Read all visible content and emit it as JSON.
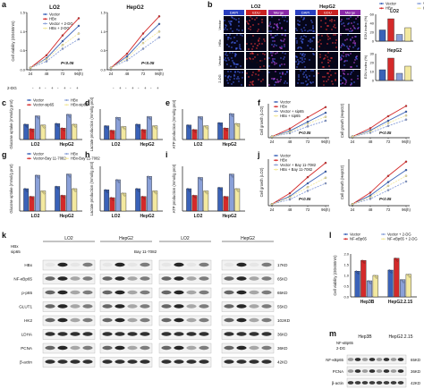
{
  "panel_letters": [
    "a",
    "b",
    "c",
    "d",
    "e",
    "f",
    "g",
    "h",
    "i",
    "j",
    "k",
    "l",
    "m"
  ],
  "legends": {
    "a": [
      "Vector",
      "HBx",
      "Vector + 2-DG",
      "HBx + 2-DG"
    ],
    "b": [
      "Vector",
      "HBx",
      "Vector + 2-DG",
      "HBx + 2-DG"
    ],
    "c": [
      "Vector",
      "Vector-sip65",
      "HBx",
      "HBx-sip65"
    ],
    "f": [
      "Vector",
      "HBx",
      "Vector + sip65",
      "HBx + sip65"
    ],
    "g": [
      "Vector",
      "Vector-Bay 11-7082",
      "HBx",
      "HBx-Bay 11-7082"
    ],
    "j": [
      "Vector",
      "HBx",
      "Vector + Bay 11-7082",
      "HBx + Bay 11-7082"
    ],
    "l": [
      "Vector",
      "NF-κBp65",
      "Vector + 2-DG",
      "NF-κBp65 + 2-DG"
    ]
  },
  "panel_a": {
    "ylabel": "Cell viability (OD450nm)",
    "xlabel": "2-DG",
    "titles": [
      "LO2",
      "HepG2"
    ],
    "pval": "P<0.05",
    "xticks": [
      "24",
      "48",
      "72",
      "96(h)"
    ],
    "yticks": [
      "1.5",
      "1.0",
      "0.5",
      "0.0"
    ]
  },
  "panel_b": {
    "cell_lines": [
      "LO2",
      "HepG2"
    ],
    "stains": [
      "DAPI",
      "EDU",
      "Merge"
    ],
    "row_labels": [
      "Vector",
      "HBx",
      "Vector",
      "2-DG"
    ],
    "bar_titles": [
      "LO2",
      "HepG2"
    ],
    "bar_ylabel": "EDU index (%)",
    "yticks_top": [
      "60",
      "40",
      "20",
      "0"
    ],
    "yticks_bot": [
      "30",
      "20",
      "10",
      "0"
    ]
  },
  "panel_c": {
    "ylabel": "Glucose uptake (mmol/g prot)",
    "groups": [
      "LO2",
      "HepG2"
    ]
  },
  "panel_d": {
    "ylabel": "Lactate production (mmol/g prot)",
    "groups": [
      "LO2",
      "HepG2"
    ]
  },
  "panel_e": {
    "ylabel": "ATP production (mmol/g prot)",
    "groups": [
      "LO2",
      "HepG2"
    ]
  },
  "panel_f": {
    "ylabels": [
      "Cell growth (LO2)",
      "Cell growth (HepG2)"
    ],
    "xticks": [
      "24",
      "48",
      "72",
      "96(h)"
    ],
    "pval": "P<0.05"
  },
  "panel_g": {
    "ylabel": "Glucose uptake (mmol/g prot)",
    "groups": [
      "LO2",
      "HepG2"
    ]
  },
  "panel_h": {
    "ylabel": "Lactate production (mmol/g prot)",
    "groups": [
      "LO2",
      "HepG2"
    ]
  },
  "panel_i": {
    "ylabel": "ATP production (mmol/g prot)",
    "groups": [
      "LO2",
      "HepG2"
    ]
  },
  "panel_j": {
    "ylabels": [
      "Cell growth (LO2)",
      "Cell growth (HepG2)"
    ],
    "xticks": [
      "24",
      "48",
      "72",
      "96(h)"
    ],
    "pval": "P<0.05"
  },
  "panel_k": {
    "cell_lines": [
      "LO2",
      "HepG2",
      "LO2",
      "HepG2"
    ],
    "treatments_left": [
      "HBx",
      "sip65"
    ],
    "treatment_right": "Bay 11-7082",
    "proteins": [
      "HBx",
      "NF-κBp65",
      "p-p65",
      "GLUT1",
      "HK2",
      "LDHA",
      "PCNA",
      "β-actin"
    ],
    "sizes": [
      "17KD",
      "65KD",
      "65KD",
      "55KD",
      "102KD",
      "36KD",
      "36KD",
      "42KD"
    ]
  },
  "panel_l": {
    "ylabel": "Cell viability (OD450nm)",
    "groups": [
      "Hep3B",
      "HepG2.2.15"
    ],
    "yticks": [
      "2.0",
      "1.5",
      "1.0",
      "0.5",
      "0.0"
    ]
  },
  "panel_m": {
    "cell_lines": [
      "Hep3B",
      "HepG2.2.15"
    ],
    "treatments": [
      "NF-κBp65",
      "2-DG"
    ],
    "proteins": [
      "NF-κBp65",
      "PCNA",
      "β-actin"
    ],
    "sizes": [
      "65KD",
      "36KD",
      "42KD"
    ]
  },
  "chart_data": [
    {
      "panel": "a-LO2",
      "type": "line",
      "x": [
        24,
        48,
        72,
        96
      ],
      "ylim": [
        0,
        1.5
      ],
      "series": [
        {
          "name": "Vector",
          "values": [
            0.05,
            0.3,
            0.75,
            1.15
          ]
        },
        {
          "name": "HBx",
          "values": [
            0.05,
            0.38,
            0.9,
            1.35
          ]
        },
        {
          "name": "Vector + 2-DG",
          "values": [
            0.05,
            0.22,
            0.55,
            0.8
          ]
        },
        {
          "name": "HBx + 2-DG",
          "values": [
            0.05,
            0.28,
            0.65,
            0.95
          ]
        }
      ]
    },
    {
      "panel": "a-HepG2",
      "type": "line",
      "x": [
        24,
        48,
        72,
        96
      ],
      "ylim": [
        0,
        1.5
      ],
      "series": [
        {
          "name": "Vector",
          "values": [
            0.05,
            0.35,
            0.8,
            1.2
          ]
        },
        {
          "name": "HBx",
          "values": [
            0.05,
            0.42,
            0.95,
            1.4
          ]
        },
        {
          "name": "Vector + 2-DG",
          "values": [
            0.05,
            0.25,
            0.55,
            0.85
          ]
        },
        {
          "name": "HBx + 2-DG",
          "values": [
            0.05,
            0.3,
            0.7,
            1.0
          ]
        }
      ]
    },
    {
      "panel": "b-LO2",
      "type": "bar",
      "ylim": [
        0,
        60
      ],
      "values": [
        25,
        50,
        15,
        30
      ]
    },
    {
      "panel": "b-HepG2",
      "type": "bar",
      "ylim": [
        0,
        30
      ],
      "values": [
        12,
        25,
        8,
        16
      ]
    },
    {
      "panel": "c",
      "type": "bar",
      "categories": [
        "LO2",
        "HepG2"
      ],
      "series": [
        {
          "name": "Vector",
          "values": [
            2.0,
            2.1
          ]
        },
        {
          "name": "Vector-sip65",
          "values": [
            1.4,
            1.5
          ]
        },
        {
          "name": "HBx",
          "values": [
            3.1,
            3.3
          ]
        },
        {
          "name": "HBx-sip65",
          "values": [
            1.9,
            2.0
          ]
        }
      ]
    },
    {
      "panel": "d",
      "type": "bar",
      "categories": [
        "LO2",
        "HepG2"
      ],
      "series": [
        {
          "name": "Vector",
          "values": [
            1.8,
            2.0
          ]
        },
        {
          "name": "Vector-sip65",
          "values": [
            1.2,
            1.3
          ]
        },
        {
          "name": "HBx",
          "values": [
            2.9,
            3.0
          ]
        },
        {
          "name": "HBx-sip65",
          "values": [
            1.7,
            1.8
          ]
        }
      ]
    },
    {
      "panel": "e",
      "type": "bar",
      "categories": [
        "LO2",
        "HepG2"
      ],
      "series": [
        {
          "name": "Vector",
          "values": [
            1.9,
            2.2
          ]
        },
        {
          "name": "Vector-sip65",
          "values": [
            1.3,
            1.5
          ]
        },
        {
          "name": "HBx",
          "values": [
            3.0,
            3.4
          ]
        },
        {
          "name": "HBx-sip65",
          "values": [
            1.8,
            2.1
          ]
        }
      ]
    },
    {
      "panel": "f-LO2",
      "type": "line",
      "x": [
        24,
        48,
        72,
        96
      ],
      "ylim": [
        0,
        1.5
      ],
      "series": [
        {
          "name": "Vector",
          "values": [
            0.05,
            0.3,
            0.7,
            1.1
          ]
        },
        {
          "name": "HBx",
          "values": [
            0.05,
            0.4,
            0.9,
            1.35
          ]
        },
        {
          "name": "Vector + sip65",
          "values": [
            0.05,
            0.2,
            0.5,
            0.75
          ]
        },
        {
          "name": "HBx + sip65",
          "values": [
            0.05,
            0.26,
            0.62,
            0.92
          ]
        }
      ]
    },
    {
      "panel": "f-HepG2",
      "type": "line",
      "x": [
        24,
        48,
        72,
        96
      ],
      "ylim": [
        0,
        1.5
      ],
      "series": [
        {
          "name": "Vector",
          "values": [
            0.05,
            0.32,
            0.75,
            1.15
          ]
        },
        {
          "name": "HBx",
          "values": [
            0.05,
            0.42,
            0.95,
            1.4
          ]
        },
        {
          "name": "Vector + sip65",
          "values": [
            0.05,
            0.22,
            0.52,
            0.8
          ]
        },
        {
          "name": "HBx + sip65",
          "values": [
            0.05,
            0.28,
            0.65,
            0.98
          ]
        }
      ]
    },
    {
      "panel": "g",
      "type": "bar",
      "categories": [
        "LO2",
        "HepG2"
      ],
      "series": [
        {
          "name": "Vector",
          "values": [
            2.0,
            2.2
          ]
        },
        {
          "name": "Vector-Bay 11-7082",
          "values": [
            1.3,
            1.4
          ]
        },
        {
          "name": "HBx",
          "values": [
            3.2,
            3.3
          ]
        },
        {
          "name": "HBx-Bay 11-7082",
          "values": [
            1.8,
            2.0
          ]
        }
      ]
    },
    {
      "panel": "h",
      "type": "bar",
      "categories": [
        "LO2",
        "HepG2"
      ],
      "series": [
        {
          "name": "Vector",
          "values": [
            1.9,
            2.0
          ]
        },
        {
          "name": "Vector-Bay 11-7082",
          "values": [
            1.2,
            1.3
          ]
        },
        {
          "name": "HBx",
          "values": [
            2.8,
            3.1
          ]
        },
        {
          "name": "HBx-Bay 11-7082",
          "values": [
            1.6,
            1.8
          ]
        }
      ]
    },
    {
      "panel": "i",
      "type": "bar",
      "categories": [
        "LO2",
        "HepG2"
      ],
      "series": [
        {
          "name": "Vector",
          "values": [
            2.0,
            2.1
          ]
        },
        {
          "name": "Vector-Bay 11-7082",
          "values": [
            1.4,
            1.3
          ]
        },
        {
          "name": "HBx",
          "values": [
            3.0,
            3.3
          ]
        },
        {
          "name": "HBx-Bay 11-7082",
          "values": [
            1.8,
            2.0
          ]
        }
      ]
    },
    {
      "panel": "j-LO2",
      "type": "line",
      "x": [
        24,
        48,
        72,
        96
      ],
      "ylim": [
        0,
        1.5
      ],
      "series": [
        {
          "name": "Vector",
          "values": [
            0.05,
            0.3,
            0.72,
            1.1
          ]
        },
        {
          "name": "HBx",
          "values": [
            0.05,
            0.4,
            0.92,
            1.38
          ]
        },
        {
          "name": "Vector + Bay 11-7082",
          "values": [
            0.05,
            0.2,
            0.48,
            0.72
          ]
        },
        {
          "name": "HBx + Bay 11-7082",
          "values": [
            0.05,
            0.27,
            0.6,
            0.9
          ]
        }
      ]
    },
    {
      "panel": "j-HepG2",
      "type": "line",
      "x": [
        24,
        48,
        72,
        96
      ],
      "ylim": [
        0,
        1.5
      ],
      "series": [
        {
          "name": "Vector",
          "values": [
            0.05,
            0.33,
            0.76,
            1.15
          ]
        },
        {
          "name": "HBx",
          "values": [
            0.05,
            0.42,
            0.96,
            1.42
          ]
        },
        {
          "name": "Vector + Bay 11-7082",
          "values": [
            0.05,
            0.22,
            0.5,
            0.78
          ]
        },
        {
          "name": "HBx + Bay 11-7082",
          "values": [
            0.05,
            0.28,
            0.64,
            0.96
          ]
        }
      ]
    },
    {
      "panel": "l",
      "type": "bar",
      "categories": [
        "Hep3B",
        "HepG2.2.15"
      ],
      "ylim": [
        0,
        2.0
      ],
      "series": [
        {
          "name": "Vector",
          "values": [
            1.2,
            1.25
          ]
        },
        {
          "name": "NF-κBp65",
          "values": [
            1.7,
            1.8
          ]
        },
        {
          "name": "Vector + 2-DG",
          "values": [
            0.75,
            0.8
          ]
        },
        {
          "name": "NF-κBp65 + 2-DG",
          "values": [
            1.0,
            1.05
          ]
        }
      ]
    }
  ],
  "colors": {
    "vector": "#3a62b8",
    "hbx": "#d42a2a",
    "vector_2dg": "#8aa0d8",
    "hbx_2dg": "#f3e9a0",
    "blot_bg": "#f2f2f2",
    "blot_band": "#1c1c1c"
  }
}
